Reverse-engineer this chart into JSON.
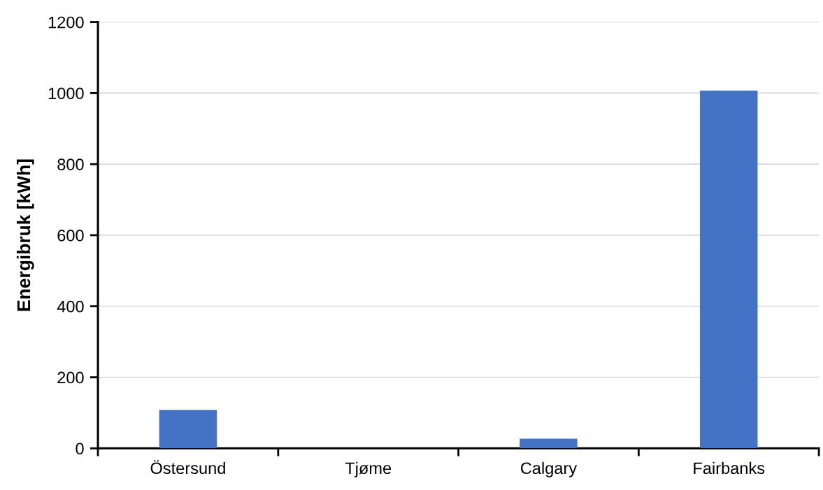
{
  "chart_data": {
    "type": "bar",
    "ylabel": "Energibruk [kWh]",
    "categories": [
      "Östersund",
      "Tjøme",
      "Calgary",
      "Fairbanks"
    ],
    "values": [
      108,
      0,
      27,
      1007
    ],
    "color": "#4472c4",
    "ylim": [
      0,
      1200
    ],
    "yticks": [
      0,
      200,
      400,
      600,
      800,
      1000,
      1200
    ],
    "grid": "y",
    "legend": false
  }
}
